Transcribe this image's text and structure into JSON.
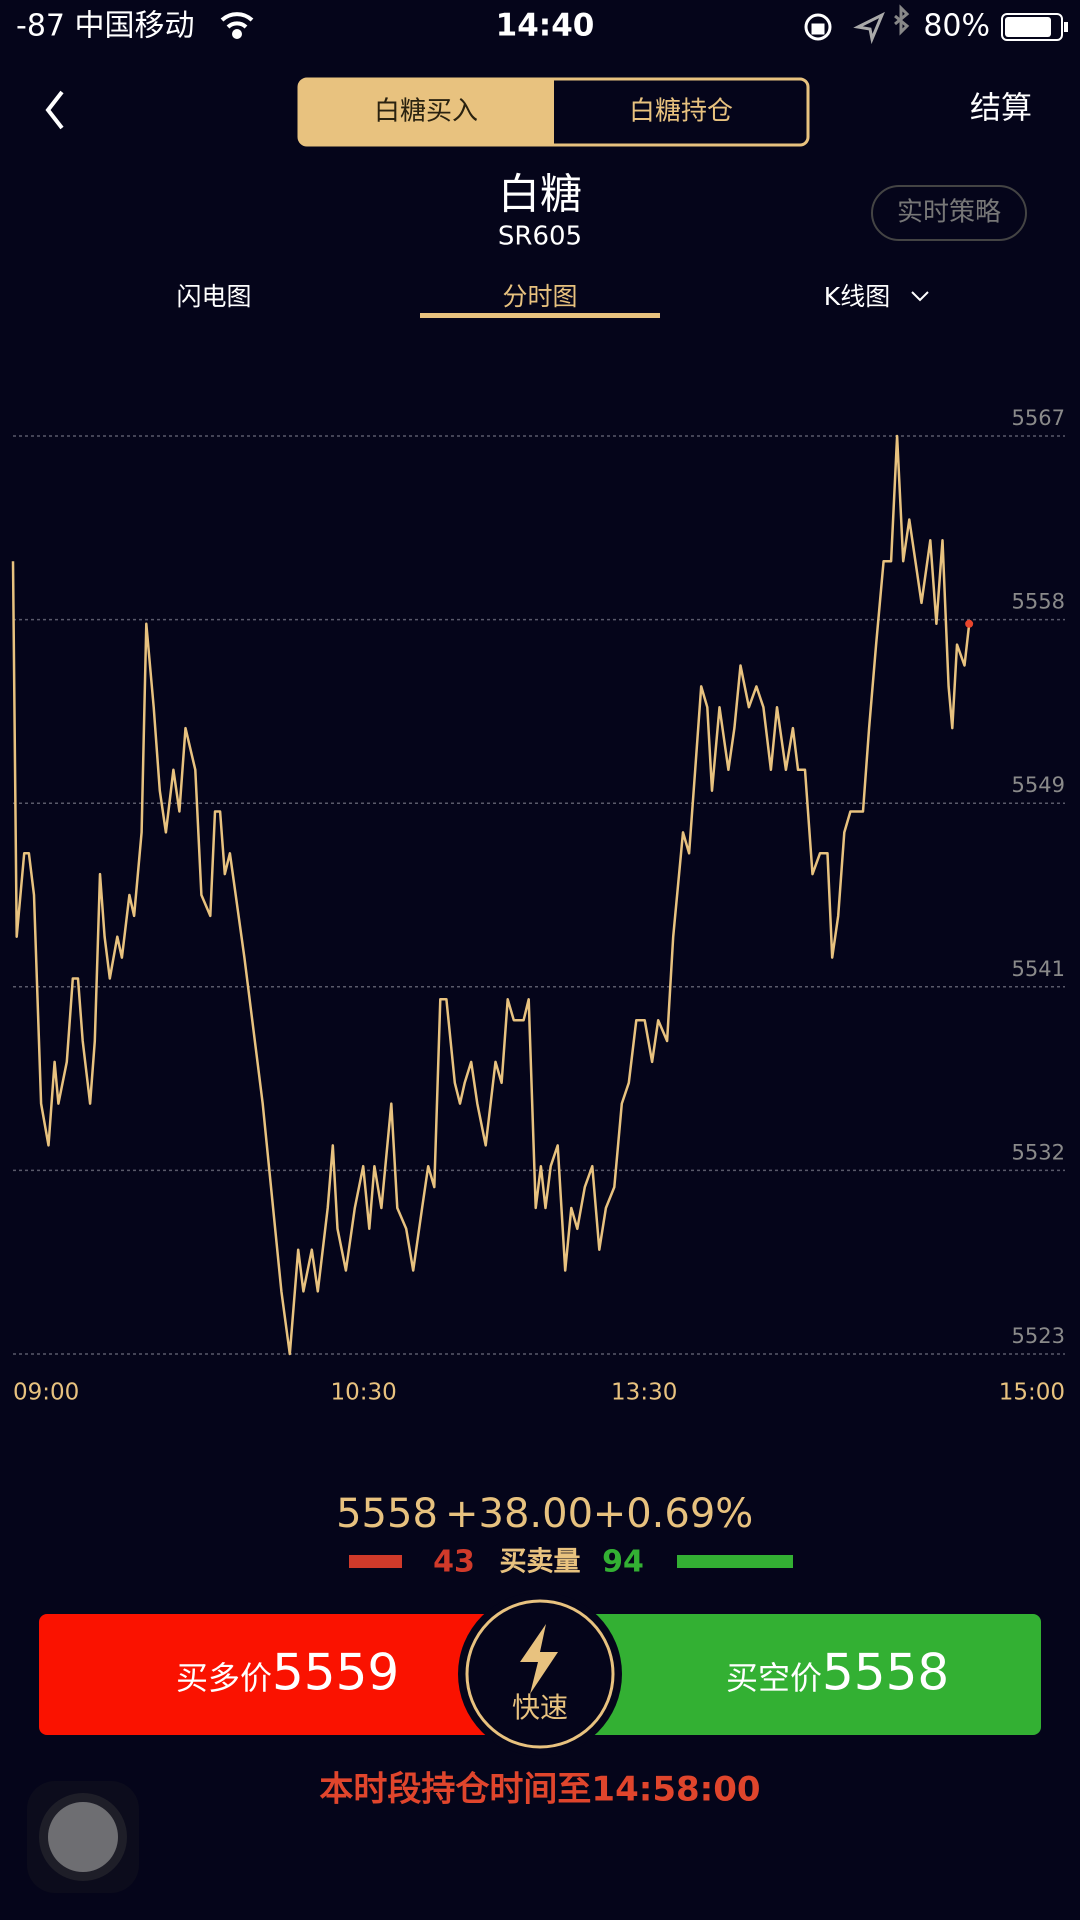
{
  "status_bar": {
    "carrier": "-87 中国移动",
    "time": "14:40",
    "battery": "80%"
  },
  "nav": {
    "tabs": [
      "白糖买入",
      "白糖持仓"
    ],
    "right": "结算"
  },
  "header": {
    "title": "白糖",
    "code": "SR605",
    "strategy_button": "实时策略"
  },
  "chart_tabs": [
    "闪电图",
    "分时图",
    "K线图"
  ],
  "chart_data": {
    "type": "line",
    "color": "#e8c27f",
    "last_point_color": "#e8452c",
    "grid": true,
    "xlim": [
      0,
      225
    ],
    "ylim": [
      5523,
      5567
    ],
    "xticks": [
      {
        "value": 0,
        "label": "09:00"
      },
      {
        "value": 75,
        "label": "10:30"
      },
      {
        "value": 135,
        "label": "13:30"
      },
      {
        "value": 225,
        "label": "15:00"
      }
    ],
    "yticks": [
      5523,
      {
        "value": 5531.8,
        "label": "5532"
      },
      {
        "value": 5540.6,
        "label": "5541"
      },
      {
        "value": 5549.4,
        "label": "5549"
      },
      {
        "value": 5558.2,
        "label": "5558"
      },
      5567
    ],
    "x": [
      0,
      0.8,
      2.4,
      3.4,
      4.5,
      6.0,
      7.6,
      8.9,
      9.7,
      11.5,
      12.8,
      13.9,
      14.9,
      16.5,
      17.5,
      18.6,
      19.6,
      20.7,
      22.3,
      23.3,
      24.9,
      25.9,
      27.5,
      28.5,
      30.1,
      31.4,
      32.7,
      34.3,
      35.6,
      36.9,
      39.0,
      40.3,
      42.2,
      43.2,
      44.3,
      45.3,
      46.4,
      49.5,
      53.4,
      57.4,
      59.2,
      61.0,
      62.1,
      63.9,
      65.2,
      67.3,
      68.4,
      69.4,
      71.2,
      73.1,
      74.9,
      76.2,
      77.3,
      78.8,
      80.9,
      82.2,
      84.1,
      85.6,
      87.5,
      88.8,
      90.1,
      91.4,
      92.7,
      94.5,
      95.6,
      96.6,
      98.0,
      99.3,
      101.1,
      103.2,
      104.5,
      105.8,
      107.1,
      109.2,
      110.3,
      111.8,
      112.9,
      113.9,
      115.0,
      116.5,
      118.1,
      119.4,
      120.7,
      122.3,
      123.9,
      125.4,
      126.8,
      128.6,
      130.2,
      131.7,
      133.3,
      135.1,
      136.7,
      138.0,
      139.9,
      141.2,
      143.3,
      144.6,
      145.9,
      147.2,
      148.5,
      149.5,
      151.1,
      153.0,
      154.3,
      155.6,
      157.4,
      159.0,
      160.5,
      162.1,
      163.4,
      165.3,
      166.8,
      167.9,
      169.4,
      171.0,
      172.6,
      174.2,
      175.2,
      176.5,
      177.8,
      179.1,
      180.5,
      181.8,
      183.1,
      184.6,
      186.2,
      187.8,
      189.1,
      190.4,
      191.7,
      193.0,
      194.3,
      196.2,
      197.5,
      198.8,
      200.1,
      200.9,
      201.9,
      203.5,
      204.5
    ],
    "values": [
      5561,
      5543,
      5547,
      5547,
      5545,
      5535,
      5533,
      5537,
      5535,
      5537,
      5541,
      5541,
      5538,
      5535,
      5538,
      5546,
      5543,
      5541,
      5543,
      5542,
      5545,
      5544,
      5548,
      5558,
      5554,
      5550,
      5548,
      5551,
      5549,
      5553,
      5551,
      5545,
      5544,
      5549,
      5549,
      5546,
      5547,
      5542,
      5535,
      5526,
      5523,
      5528,
      5526,
      5528,
      5526,
      5530,
      5533,
      5529,
      5527,
      5530,
      5532,
      5529,
      5532,
      5530,
      5535,
      5530,
      5529,
      5527,
      5530,
      5532,
      5531,
      5540,
      5540,
      5536,
      5535,
      5536,
      5537,
      5535,
      5533,
      5537,
      5536,
      5540,
      5539,
      5539,
      5540,
      5530,
      5532,
      5530,
      5532,
      5533,
      5527,
      5530,
      5529,
      5531,
      5532,
      5528,
      5530,
      5531,
      5535,
      5536,
      5539,
      5539,
      5537,
      5539,
      5538,
      5543,
      5548,
      5547,
      5551,
      5555,
      5554,
      5550,
      5554,
      5551,
      5553,
      5556,
      5554,
      5555,
      5554,
      5551,
      5554,
      5551,
      5553,
      5551,
      5551,
      5546,
      5547,
      5547,
      5542,
      5544,
      5548,
      5549,
      5549,
      5549,
      5553,
      5557,
      5561,
      5561,
      5567,
      5561,
      5563,
      5561,
      5559,
      5562,
      5558,
      5562,
      5555,
      5553,
      5557,
      5556,
      5558
    ]
  },
  "stats": {
    "price": "5558",
    "change": "+38.00",
    "percent": "+0.69%",
    "buy_count": "43",
    "volume_label": "买卖量",
    "sell_count": "94"
  },
  "buttons": {
    "buy_label": "买多价",
    "buy_price": "5559",
    "quick": "快速",
    "sell_label": "买空价",
    "sell_price": "5558"
  },
  "footer": {
    "notice": "本时段持仓时间至14:58:00"
  }
}
